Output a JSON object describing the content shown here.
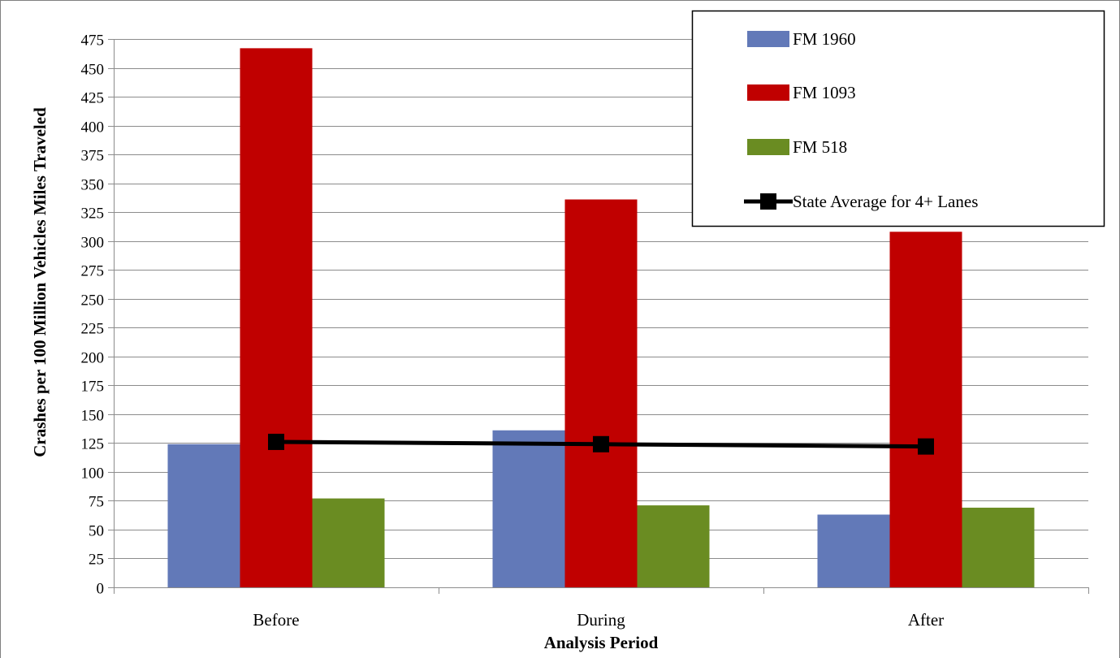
{
  "chart_data": {
    "type": "bar",
    "categories": [
      "Before",
      "During",
      "After"
    ],
    "series": [
      {
        "name": "FM 1960",
        "kind": "bar",
        "color": "#6279b8",
        "values": [
          124,
          136,
          63
        ]
      },
      {
        "name": "FM 1093",
        "kind": "bar",
        "color": "#c00000",
        "values": [
          467,
          336,
          308
        ]
      },
      {
        "name": "FM 518",
        "kind": "bar",
        "color": "#6a8c22",
        "values": [
          77,
          71,
          69
        ]
      },
      {
        "name": "State Average for 4+ Lanes",
        "kind": "line",
        "color": "#000000",
        "values": [
          126,
          124,
          122
        ]
      }
    ],
    "title": "",
    "xlabel": "Analysis Period",
    "ylabel": "Crashes per 100 Million Vehicles Miles Traveled",
    "ylim": [
      0,
      475
    ],
    "yticks": [
      0,
      25,
      50,
      75,
      100,
      125,
      150,
      175,
      200,
      225,
      250,
      275,
      300,
      325,
      350,
      375,
      400,
      425,
      450,
      475
    ],
    "grid": true,
    "legend_position": "top-right"
  }
}
